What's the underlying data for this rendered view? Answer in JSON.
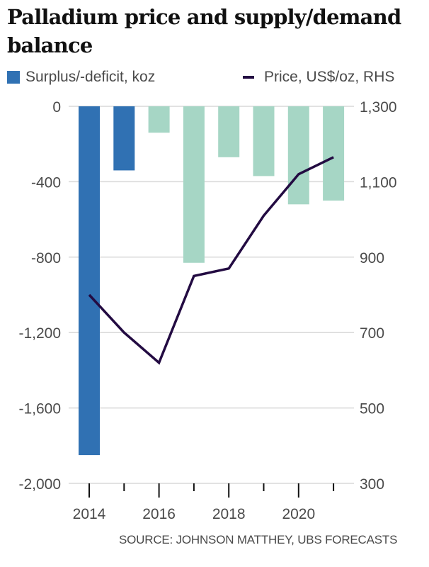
{
  "chart_data": {
    "type": "bar",
    "title": "Palladium price and supply/demand balance",
    "source": "SOURCE: JOHNSON MATTHEY, UBS FORECASTS",
    "categories": [
      "2014",
      "2015",
      "2016",
      "2017",
      "2018",
      "2019",
      "2020",
      "2021"
    ],
    "x_tick_labels": [
      "2014",
      "2016",
      "2018",
      "2020"
    ],
    "series": [
      {
        "name": "Surplus/-deficit, koz",
        "type": "bar",
        "axis": "left",
        "values": [
          -1850,
          -340,
          -140,
          -830,
          -270,
          -370,
          -520,
          -500
        ],
        "forecast_from_index": 2
      },
      {
        "name": "Price, US$/oz, RHS",
        "type": "line",
        "axis": "right",
        "values": [
          800,
          700,
          620,
          850,
          870,
          1010,
          1120,
          1165
        ]
      }
    ],
    "y_left": {
      "label": "",
      "ylim": [
        -2000,
        0
      ],
      "ticks": [
        0,
        -400,
        -800,
        -1200,
        -1600,
        -2000
      ],
      "tick_labels": [
        "0",
        "-400",
        "-800",
        "-1,200",
        "-1,600",
        "-2,000"
      ]
    },
    "y_right": {
      "label": "",
      "ylim": [
        300,
        1300
      ],
      "ticks": [
        1300,
        1100,
        900,
        700,
        500,
        300
      ],
      "tick_labels": [
        "1,300",
        "1,100",
        "900",
        "700",
        "500",
        "300"
      ]
    },
    "grid": true,
    "legend": "top",
    "colors": {
      "bar_actual": "#3071b3",
      "bar_forecast": "#a6d6c5",
      "line": "#230b42",
      "grid": "#d9d9d9",
      "text": "#4a4a4a",
      "tick": "#111111"
    }
  },
  "legend": {
    "bar_label": "Surplus/-deficit, koz",
    "line_label": "Price, US$/oz, RHS"
  }
}
